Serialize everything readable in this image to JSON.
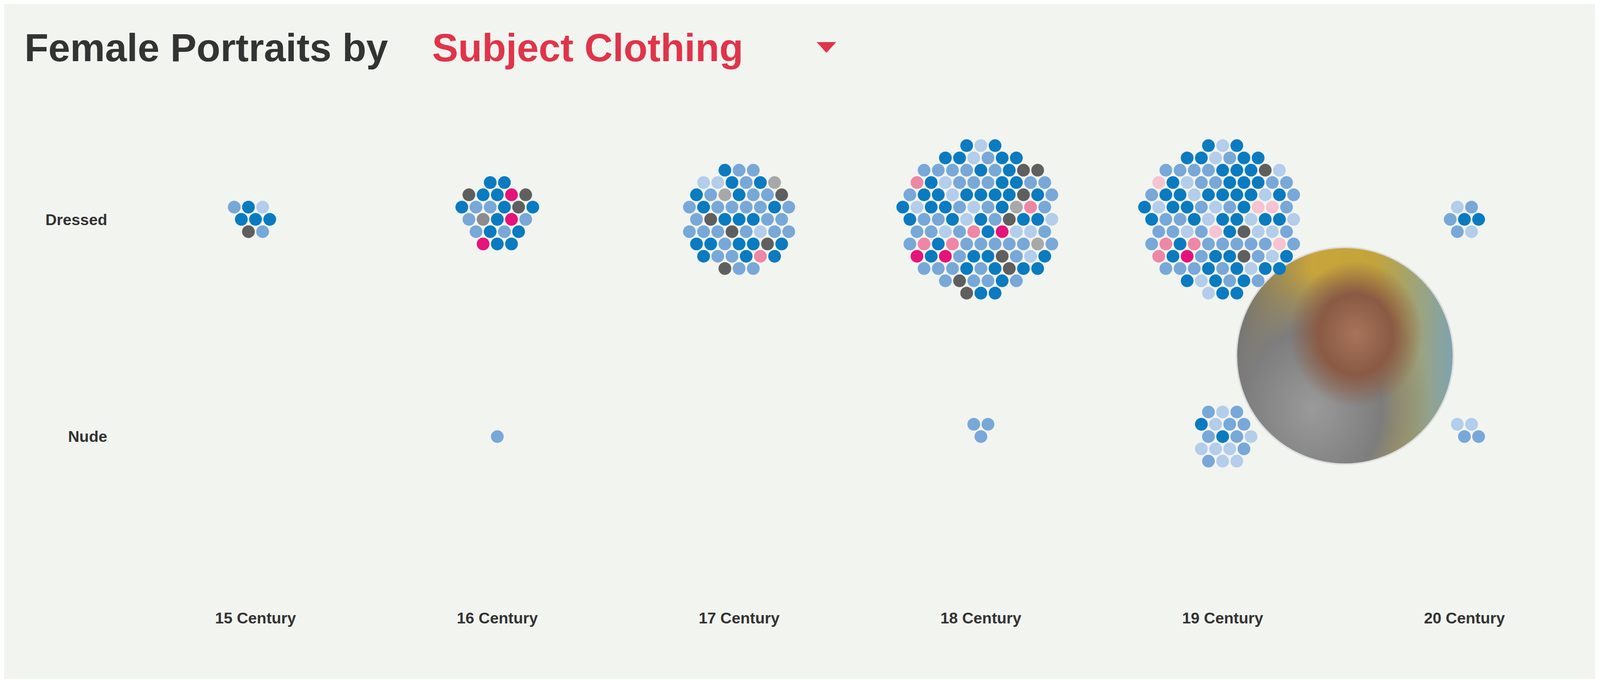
{
  "chart_data": {
    "type": "beeswarm",
    "title": "Female Portraits by",
    "subtitle": "Subject Clothing",
    "categories": [
      "15 Century",
      "16 Century",
      "17 Century",
      "18 Century",
      "19 Century",
      "20 Century"
    ],
    "rows": [
      "Dressed",
      "Nude"
    ],
    "cells": [
      {
        "category": "15 Century",
        "row": "Dressed",
        "groups": [
          {
            "color": "#0a7bc0",
            "count": 4
          },
          {
            "color": "#78a8d8",
            "count": 2
          },
          {
            "color": "#b3cdeb",
            "count": 1
          },
          {
            "color": "#5f5f5f",
            "count": 1
          }
        ]
      },
      {
        "category": "16 Century",
        "row": "Dressed",
        "groups": [
          {
            "color": "#0a7bc0",
            "count": 12
          },
          {
            "color": "#78a8d8",
            "count": 6
          },
          {
            "color": "#5f5f5f",
            "count": 3
          },
          {
            "color": "#8c8c8c",
            "count": 1
          },
          {
            "color": "#e6137a",
            "count": 3
          }
        ]
      },
      {
        "category": "17 Century",
        "row": "Dressed",
        "groups": [
          {
            "color": "#0a7bc0",
            "count": 18
          },
          {
            "color": "#78a8d8",
            "count": 26
          },
          {
            "color": "#b3cdeb",
            "count": 3
          },
          {
            "color": "#5f5f5f",
            "count": 5
          },
          {
            "color": "#a8a8a8",
            "count": 2
          },
          {
            "color": "#ee87a5",
            "count": 1
          }
        ]
      },
      {
        "category": "18 Century",
        "row": "Dressed",
        "groups": [
          {
            "color": "#0a7bc0",
            "count": 40
          },
          {
            "color": "#78a8d8",
            "count": 40
          },
          {
            "color": "#b3cdeb",
            "count": 12
          },
          {
            "color": "#5f5f5f",
            "count": 8
          },
          {
            "color": "#e6137a",
            "count": 3
          },
          {
            "color": "#ee87a5",
            "count": 5
          },
          {
            "color": "#a8a8a8",
            "count": 2
          }
        ]
      },
      {
        "category": "19 Century",
        "row": "Dressed",
        "groups": [
          {
            "color": "#0a7bc0",
            "count": 45
          },
          {
            "color": "#78a8d8",
            "count": 35
          },
          {
            "color": "#b3cdeb",
            "count": 18
          },
          {
            "color": "#5f5f5f",
            "count": 3
          },
          {
            "color": "#e6137a",
            "count": 1
          },
          {
            "color": "#ee87a5",
            "count": 3
          },
          {
            "color": "#f6c3d2",
            "count": 5
          }
        ]
      },
      {
        "category": "20 Century",
        "row": "Dressed",
        "groups": [
          {
            "color": "#0a7bc0",
            "count": 2
          },
          {
            "color": "#78a8d8",
            "count": 3
          },
          {
            "color": "#b3cdeb",
            "count": 2
          }
        ]
      },
      {
        "category": "16 Century",
        "row": "Nude",
        "groups": [
          {
            "color": "#78a8d8",
            "count": 1
          }
        ]
      },
      {
        "category": "18 Century",
        "row": "Nude",
        "groups": [
          {
            "color": "#78a8d8",
            "count": 3
          }
        ]
      },
      {
        "category": "19 Century",
        "row": "Nude",
        "groups": [
          {
            "color": "#0a7bc0",
            "count": 2
          },
          {
            "color": "#78a8d8",
            "count": 8
          },
          {
            "color": "#b3cdeb",
            "count": 8
          }
        ]
      },
      {
        "category": "20 Century",
        "row": "Nude",
        "groups": [
          {
            "color": "#78a8d8",
            "count": 2
          },
          {
            "color": "#b3cdeb",
            "count": 2
          }
        ]
      }
    ]
  }
}
